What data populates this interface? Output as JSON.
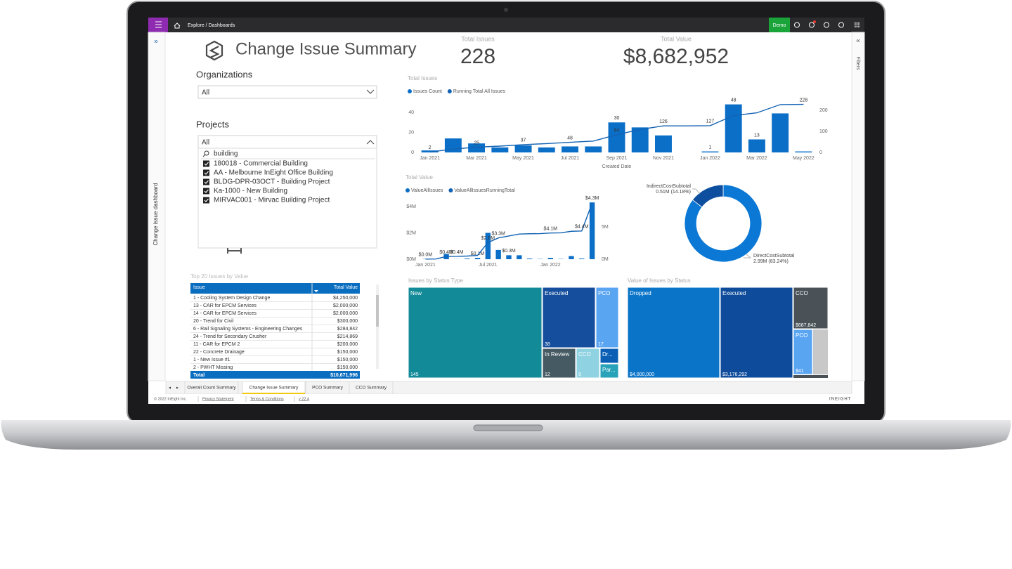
{
  "topbar": {
    "breadcrumb": "Explore  /  Dashboards",
    "environment": "Demo"
  },
  "sidebar": {
    "label": "Change issue dashboard"
  },
  "filters_pane": {
    "label": "Filters"
  },
  "dashboard": {
    "title": "Change Issue Summary",
    "kpis": [
      {
        "label": "Total Issues",
        "value": "228"
      },
      {
        "label": "Total Value",
        "value": "$8,682,952"
      }
    ],
    "organizations": {
      "label": "Organizations",
      "selected": "All"
    },
    "projects": {
      "label": "Projects",
      "selected": "All",
      "search": "building",
      "options": [
        "180018 - Commercial Building",
        "AA - Melbourne InEight Office Building",
        "BLDG-DPR-03OCT - Building Project",
        "Ka-1000 - New Building",
        "MIRVAC001 - Mirvac Building Project"
      ]
    },
    "issues_chart": {
      "type": "bar-line",
      "title": "Total Issues",
      "x_label": "Created Date",
      "categories": [
        "Jan 2021",
        null,
        "Mar 2021",
        null,
        "May 2021",
        null,
        "Jul 2021",
        null,
        "Sep 2021",
        null,
        "Nov 2021",
        null,
        "Jan 2022",
        null,
        "Mar 2022",
        null,
        "May 2022"
      ],
      "ylim": [
        0,
        40
      ],
      "yticks": [
        0,
        20,
        40
      ],
      "y2lim": [
        0,
        200
      ],
      "y2ticks": [
        0,
        100,
        200
      ],
      "series": [
        {
          "name": "Issues Count",
          "color": "#0b6fc8",
          "values": [
            2,
            14,
            9,
            5,
            7,
            5,
            6,
            6,
            30,
            25,
            17,
            0,
            1,
            48,
            13,
            39,
            1
          ],
          "value_labels": [
            null,
            null,
            null,
            null,
            null,
            null,
            null,
            null,
            "30",
            null,
            null,
            null,
            "1",
            "48",
            "13",
            null,
            null
          ]
        },
        {
          "name": "Running Total All Issues",
          "color": "#1262b3",
          "axis": "y2",
          "values": [
            2,
            16,
            25,
            30,
            37,
            42,
            48,
            54,
            84,
            109,
            126,
            126,
            127,
            175,
            188,
            227,
            228
          ],
          "value_labels": [
            "2",
            null,
            "25",
            null,
            "37",
            null,
            "48",
            null,
            "84",
            null,
            "126",
            null,
            "127",
            null,
            null,
            null,
            "228"
          ]
        }
      ]
    },
    "value_chart": {
      "type": "bar-line",
      "title": "Total Value",
      "categories": [
        "Jan 2021",
        null,
        null,
        null,
        null,
        null,
        "Jul 2021",
        null,
        null,
        null,
        null,
        null,
        "Jan 2022",
        null,
        null,
        null,
        null
      ],
      "ylim": [
        0,
        4.5
      ],
      "yticks": [
        {
          "value": 0,
          "label": "$0M"
        },
        {
          "value": 2,
          "label": "$2M"
        },
        {
          "value": 4,
          "label": "$4M"
        }
      ],
      "y2lim": [
        0,
        10
      ],
      "y2ticks": [
        {
          "value": 0,
          "label": "0M"
        },
        {
          "value": 5,
          "label": "5M"
        }
      ],
      "series": [
        {
          "name": "ValueAllIssues",
          "color": "#0b6fc8",
          "values": [
            0.02,
            0.01,
            0.4,
            0.01,
            0.05,
            0.1,
            2.0,
            0.7,
            0.3,
            0.3,
            0.05,
            0.02,
            0.1,
            0.02,
            0.24,
            0.05,
            4.31
          ],
          "value_labels": [
            null,
            null,
            null,
            null,
            null,
            "$0.1M",
            null,
            null,
            "$0.3M",
            null,
            null,
            null,
            null,
            null,
            null,
            null,
            "$4.3M"
          ]
        },
        {
          "name": "ValueAllIssuesRunningTotal",
          "color": "#1262b3",
          "axis": "y2",
          "values": [
            0.02,
            0.03,
            0.43,
            0.44,
            0.49,
            0.59,
            2.59,
            3.29,
            3.59,
            3.89,
            3.94,
            3.96,
            4.06,
            4.08,
            4.32,
            4.37,
            8.68
          ],
          "value_labels": [
            "$0.0M",
            null,
            "$0.4M",
            "$0.4M",
            null,
            null,
            "$2.6M",
            "$3.3M",
            null,
            null,
            null,
            null,
            "$4.1M",
            null,
            null,
            "$4.4M",
            null
          ]
        }
      ]
    },
    "cost_donut": {
      "type": "donut",
      "slices": [
        {
          "name": "DirectCostSubtotal",
          "label": "2.99M (83.24%)",
          "value": 83.24,
          "color": "#0a78d4"
        },
        {
          "name": "IndirectCostSubtotal",
          "label": "0.51M (14.18%)",
          "value": 14.18,
          "color": "#0d4f9e"
        }
      ]
    },
    "issues_treemap": {
      "title": "Issues by Status Type",
      "items": [
        {
          "name": "New",
          "value": 145,
          "color": "#128a98"
        },
        {
          "name": "Executed",
          "value": 38,
          "color": "#144e9c"
        },
        {
          "name": "PCO",
          "value": 17,
          "color": "#5aa5f2"
        },
        {
          "name": "In Review",
          "value": 12,
          "color": "#465a63"
        },
        {
          "name": "CCO",
          "value": 9,
          "color": "#8fd2e2"
        },
        {
          "name": "Dr...",
          "color": "#0a5fb4"
        },
        {
          "name": "Par...",
          "color": "#27a2b9"
        }
      ]
    },
    "value_treemap": {
      "title": "Value of Issues by Status",
      "items": [
        {
          "name": "Dropped",
          "value": "$4,000,000",
          "color": "#0a74c8"
        },
        {
          "name": "Executed",
          "value": "$3,176,292",
          "color": "#0e4b9b"
        },
        {
          "name": "CCO",
          "value": "$687,842",
          "color": "#4a5258"
        },
        {
          "name": "PCO",
          "value": "$41",
          "color": "#5aa5f2"
        }
      ]
    },
    "table": {
      "title": "Top 20 Issues by Value",
      "columns": [
        "Issue",
        "Total Value"
      ],
      "rows": [
        [
          "1 - Cooling System Design Change",
          "$4,250,000"
        ],
        [
          "13 - CAR for EPCM Services",
          "$2,000,000"
        ],
        [
          "14 - CAR for EPCM Services",
          "$2,000,000"
        ],
        [
          "20 - Trend for Civil",
          "$300,000"
        ],
        [
          "6 - Rail Signaling Systems - Engineering Changes",
          "$284,842"
        ],
        [
          "24 - Trend for Secondary Crusher",
          "$214,869"
        ],
        [
          "11 - CAR for EPCM 2",
          "$200,000"
        ],
        [
          "22 - Concrete Drainage",
          "$150,000"
        ],
        [
          "1 - New Issue #1",
          "$150,000"
        ],
        [
          "2 - PWHT Missing",
          "$150,000"
        ]
      ],
      "total": [
        "Total",
        "$10,671,996"
      ]
    },
    "tabs": [
      "Overall Count Summary",
      "Change Issue Summary",
      "PCO Summary",
      "CCO Summary"
    ],
    "active_tab": 1
  },
  "footer": {
    "copyright": "© 2022 InEight Inc.",
    "links": [
      "Privacy Statement",
      "Terms & Conditions",
      "v 22.4"
    ],
    "brand": "INEIGHT"
  }
}
